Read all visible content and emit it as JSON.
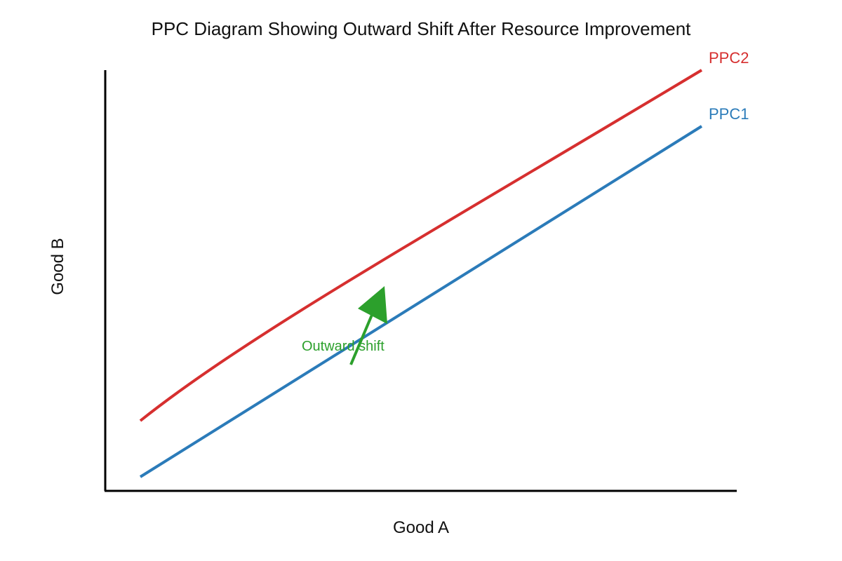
{
  "title": "PPC Diagram Showing Outward Shift After Resource Improvement",
  "xlabel": "Good A",
  "ylabel": "Good B",
  "curves": [
    {
      "name": "PPC1",
      "color": "#2b7bb9"
    },
    {
      "name": "PPC2",
      "color": "#d62f2f"
    }
  ],
  "annotation": {
    "text": "Outward shift",
    "color": "#2ca02c"
  },
  "axis_color": "#000000"
}
